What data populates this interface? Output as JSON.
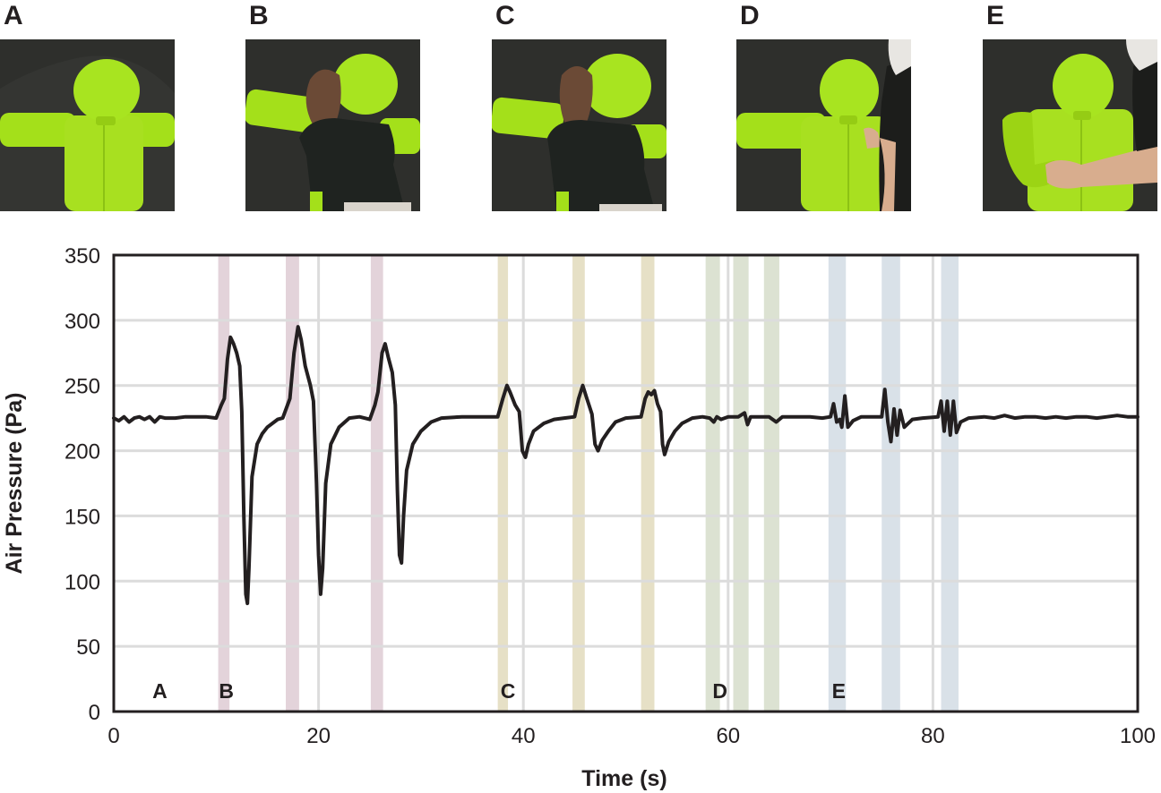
{
  "photos": [
    {
      "label": "A",
      "description": "inflatable green robot alone, arms outstretched"
    },
    {
      "label": "B",
      "description": "person hugging robot tightly"
    },
    {
      "label": "C",
      "description": "person hugging robot lightly"
    },
    {
      "label": "D",
      "description": "person touching robot chest with hand"
    },
    {
      "label": "E",
      "description": "person pushing robot arm"
    }
  ],
  "colors": {
    "line": "#231f20",
    "grid": "#dcdcdc",
    "band_B": "#e3d3da",
    "band_C": "#e6e0c6",
    "band_D": "#dce2d2",
    "band_E": "#d9e1e8",
    "robot_green": "#a4e01a",
    "backdrop": "#2e2f2c"
  },
  "chart_data": {
    "type": "line",
    "title": "",
    "xlabel": "Time (s)",
    "ylabel": "Air Pressure (Pa)",
    "xlim": [
      0,
      100
    ],
    "ylim": [
      0,
      350
    ],
    "x_ticks": [
      0,
      20,
      40,
      60,
      80,
      100
    ],
    "y_ticks": [
      0,
      50,
      100,
      150,
      200,
      250,
      300,
      350
    ],
    "grid": {
      "horizontal": true,
      "vertical_at": [
        20,
        40,
        60,
        80
      ]
    },
    "segment_labels": [
      {
        "label": "A",
        "x": 4.5
      },
      {
        "label": "B",
        "x": 11
      },
      {
        "label": "C",
        "x": 38.5
      },
      {
        "label": "D",
        "x": 59.2
      },
      {
        "label": "E",
        "x": 70.8
      }
    ],
    "bands": [
      {
        "group": "B",
        "start": 10.2,
        "end": 11.3
      },
      {
        "group": "B",
        "start": 16.8,
        "end": 18.1
      },
      {
        "group": "B",
        "start": 25.1,
        "end": 26.3
      },
      {
        "group": "C",
        "start": 37.5,
        "end": 38.5
      },
      {
        "group": "C",
        "start": 44.8,
        "end": 46.0
      },
      {
        "group": "C",
        "start": 51.5,
        "end": 52.8
      },
      {
        "group": "D",
        "start": 57.8,
        "end": 59.2
      },
      {
        "group": "D",
        "start": 60.5,
        "end": 62.0
      },
      {
        "group": "D",
        "start": 63.5,
        "end": 65.0
      },
      {
        "group": "E",
        "start": 69.8,
        "end": 71.5
      },
      {
        "group": "E",
        "start": 75.0,
        "end": 76.8
      },
      {
        "group": "E",
        "start": 80.8,
        "end": 82.5
      }
    ],
    "series": [
      {
        "name": "Air Pressure",
        "points": [
          [
            0,
            225
          ],
          [
            0.5,
            223
          ],
          [
            1,
            226
          ],
          [
            1.5,
            222
          ],
          [
            2,
            225
          ],
          [
            2.5,
            226
          ],
          [
            3,
            224
          ],
          [
            3.5,
            226
          ],
          [
            4,
            222
          ],
          [
            4.5,
            226
          ],
          [
            5,
            225
          ],
          [
            6,
            225
          ],
          [
            7,
            226
          ],
          [
            8,
            226
          ],
          [
            9,
            226
          ],
          [
            10,
            225
          ],
          [
            10.5,
            235
          ],
          [
            10.8,
            240
          ],
          [
            11.1,
            270
          ],
          [
            11.4,
            287
          ],
          [
            11.7,
            282
          ],
          [
            12.0,
            275
          ],
          [
            12.3,
            265
          ],
          [
            12.5,
            230
          ],
          [
            12.7,
            150
          ],
          [
            12.9,
            90
          ],
          [
            13.05,
            83
          ],
          [
            13.2,
            110
          ],
          [
            13.5,
            180
          ],
          [
            14,
            205
          ],
          [
            14.5,
            213
          ],
          [
            15,
            218
          ],
          [
            16,
            224
          ],
          [
            16.5,
            225
          ],
          [
            17.2,
            240
          ],
          [
            17.6,
            275
          ],
          [
            18.0,
            295
          ],
          [
            18.3,
            285
          ],
          [
            18.7,
            265
          ],
          [
            19.2,
            250
          ],
          [
            19.5,
            238
          ],
          [
            19.8,
            175
          ],
          [
            20.0,
            120
          ],
          [
            20.2,
            90
          ],
          [
            20.4,
            110
          ],
          [
            20.7,
            175
          ],
          [
            21.2,
            205
          ],
          [
            22,
            218
          ],
          [
            23,
            225
          ],
          [
            24,
            226
          ],
          [
            25,
            224
          ],
          [
            25.5,
            235
          ],
          [
            25.8,
            245
          ],
          [
            26.2,
            275
          ],
          [
            26.5,
            282
          ],
          [
            26.8,
            272
          ],
          [
            27.2,
            260
          ],
          [
            27.5,
            235
          ],
          [
            27.7,
            170
          ],
          [
            27.9,
            120
          ],
          [
            28.1,
            114
          ],
          [
            28.3,
            150
          ],
          [
            28.6,
            185
          ],
          [
            29.2,
            205
          ],
          [
            30,
            215
          ],
          [
            31,
            222
          ],
          [
            32,
            225
          ],
          [
            34,
            226
          ],
          [
            36,
            226
          ],
          [
            37.5,
            226
          ],
          [
            38.0,
            240
          ],
          [
            38.4,
            250
          ],
          [
            38.7,
            245
          ],
          [
            39.2,
            235
          ],
          [
            39.6,
            230
          ],
          [
            39.9,
            200
          ],
          [
            40.2,
            195
          ],
          [
            40.5,
            205
          ],
          [
            41,
            215
          ],
          [
            42,
            221
          ],
          [
            43,
            224
          ],
          [
            44,
            225
          ],
          [
            45,
            226
          ],
          [
            45.4,
            240
          ],
          [
            45.8,
            250
          ],
          [
            46.2,
            240
          ],
          [
            46.7,
            228
          ],
          [
            47.0,
            205
          ],
          [
            47.3,
            200
          ],
          [
            47.7,
            208
          ],
          [
            48.3,
            215
          ],
          [
            49,
            222
          ],
          [
            50,
            225
          ],
          [
            51.5,
            226
          ],
          [
            51.9,
            240
          ],
          [
            52.2,
            245
          ],
          [
            52.5,
            243
          ],
          [
            52.8,
            246
          ],
          [
            53.1,
            236
          ],
          [
            53.4,
            230
          ],
          [
            53.6,
            205
          ],
          [
            53.8,
            197
          ],
          [
            54.2,
            207
          ],
          [
            54.8,
            215
          ],
          [
            55.5,
            221
          ],
          [
            56.5,
            225
          ],
          [
            57.5,
            226
          ],
          [
            58.2,
            225
          ],
          [
            58.6,
            222
          ],
          [
            58.9,
            226
          ],
          [
            59.3,
            224
          ],
          [
            60,
            226
          ],
          [
            61,
            226
          ],
          [
            61.6,
            229
          ],
          [
            61.9,
            220
          ],
          [
            62.2,
            226
          ],
          [
            63,
            226
          ],
          [
            64,
            226
          ],
          [
            64.7,
            222
          ],
          [
            65.3,
            226
          ],
          [
            66,
            226
          ],
          [
            67,
            226
          ],
          [
            68,
            226
          ],
          [
            69.2,
            225
          ],
          [
            70.0,
            226
          ],
          [
            70.3,
            236
          ],
          [
            70.6,
            222
          ],
          [
            70.9,
            224
          ],
          [
            71.1,
            218
          ],
          [
            71.4,
            242
          ],
          [
            71.7,
            218
          ],
          [
            72.2,
            223
          ],
          [
            73,
            226
          ],
          [
            74,
            226
          ],
          [
            75.0,
            226
          ],
          [
            75.3,
            247
          ],
          [
            75.6,
            222
          ],
          [
            75.9,
            207
          ],
          [
            76.2,
            232
          ],
          [
            76.5,
            212
          ],
          [
            76.8,
            231
          ],
          [
            77.2,
            218
          ],
          [
            78,
            224
          ],
          [
            79,
            225
          ],
          [
            80.5,
            226
          ],
          [
            80.8,
            238
          ],
          [
            81.1,
            215
          ],
          [
            81.4,
            238
          ],
          [
            81.7,
            212
          ],
          [
            82.0,
            238
          ],
          [
            82.3,
            214
          ],
          [
            82.7,
            222
          ],
          [
            83.5,
            225
          ],
          [
            85,
            226
          ],
          [
            86,
            225
          ],
          [
            87,
            227
          ],
          [
            88,
            225
          ],
          [
            89,
            226
          ],
          [
            90,
            226
          ],
          [
            91,
            225
          ],
          [
            92,
            226
          ],
          [
            93,
            225
          ],
          [
            94,
            226
          ],
          [
            95,
            226
          ],
          [
            96,
            225
          ],
          [
            97,
            226
          ],
          [
            98,
            227
          ],
          [
            99,
            226
          ],
          [
            100,
            226
          ]
        ]
      }
    ],
    "peaks_summary": {
      "B": {
        "max": [
          287,
          295,
          282
        ],
        "min": [
          83,
          90,
          114
        ]
      },
      "C": {
        "max": [
          250,
          250,
          246
        ],
        "min": [
          195,
          200,
          197
        ]
      },
      "D": {
        "max": [
          229
        ],
        "min": [
          220
        ]
      },
      "E": {
        "max": [
          242,
          247,
          238
        ],
        "min": [
          218,
          207,
          212
        ]
      },
      "baseline": 225
    }
  }
}
